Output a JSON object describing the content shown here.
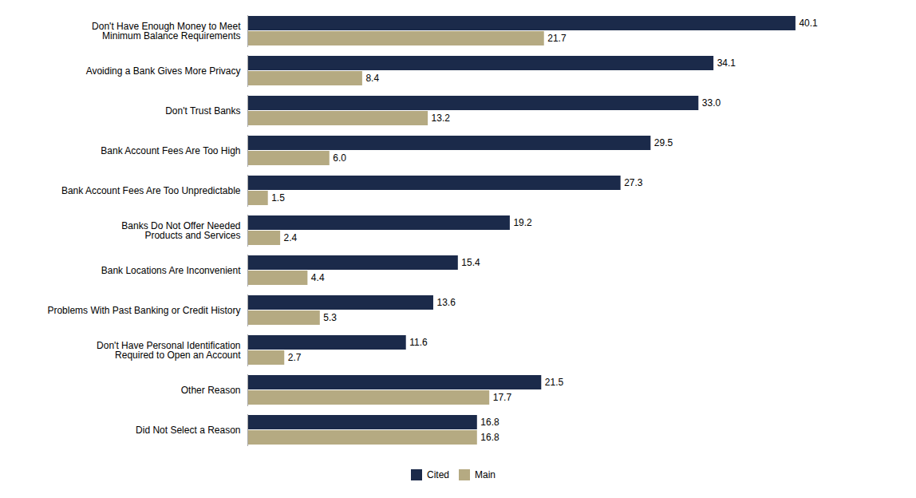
{
  "chart_data": {
    "type": "bar",
    "orientation": "horizontal",
    "categories": [
      "Don't Have Enough Money to Meet\nMinimum Balance Requirements",
      "Avoiding a Bank Gives More Privacy",
      "Don't Trust Banks",
      "Bank Account Fees Are Too High",
      "Bank Account Fees Are Too Unpredictable",
      "Banks Do Not Offer Needed\nProducts and Services",
      "Bank Locations Are Inconvenient",
      "Problems With Past Banking or Credit History",
      "Don't Have Personal Identification\nRequired to Open an Account",
      "Other Reason",
      "Did Not Select a Reason"
    ],
    "series": [
      {
        "name": "Cited",
        "color": "#1B2A4A",
        "values": [
          40.1,
          34.1,
          33.0,
          29.5,
          27.3,
          19.2,
          15.4,
          13.6,
          11.6,
          21.5,
          16.8
        ],
        "value_labels": [
          "40.1",
          "34.1",
          "33.0",
          "29.5",
          "27.3",
          "19.2",
          "15.4",
          "13.6",
          "11.6",
          "21.5",
          "16.8"
        ]
      },
      {
        "name": "Main",
        "color": "#B5AA82",
        "values": [
          21.7,
          8.4,
          13.2,
          6.0,
          1.5,
          2.4,
          4.4,
          5.3,
          2.7,
          17.7,
          16.8
        ],
        "value_labels": [
          "21.7",
          "8.4",
          "13.2",
          "6.0",
          "1.5",
          "2.4",
          "4.4",
          "5.3",
          "2.7",
          "17.7",
          "16.8"
        ]
      }
    ],
    "xlim": [
      0,
      46
    ],
    "tick_labels": "y",
    "data_labels": true,
    "grid": false,
    "legend": "bottom"
  }
}
